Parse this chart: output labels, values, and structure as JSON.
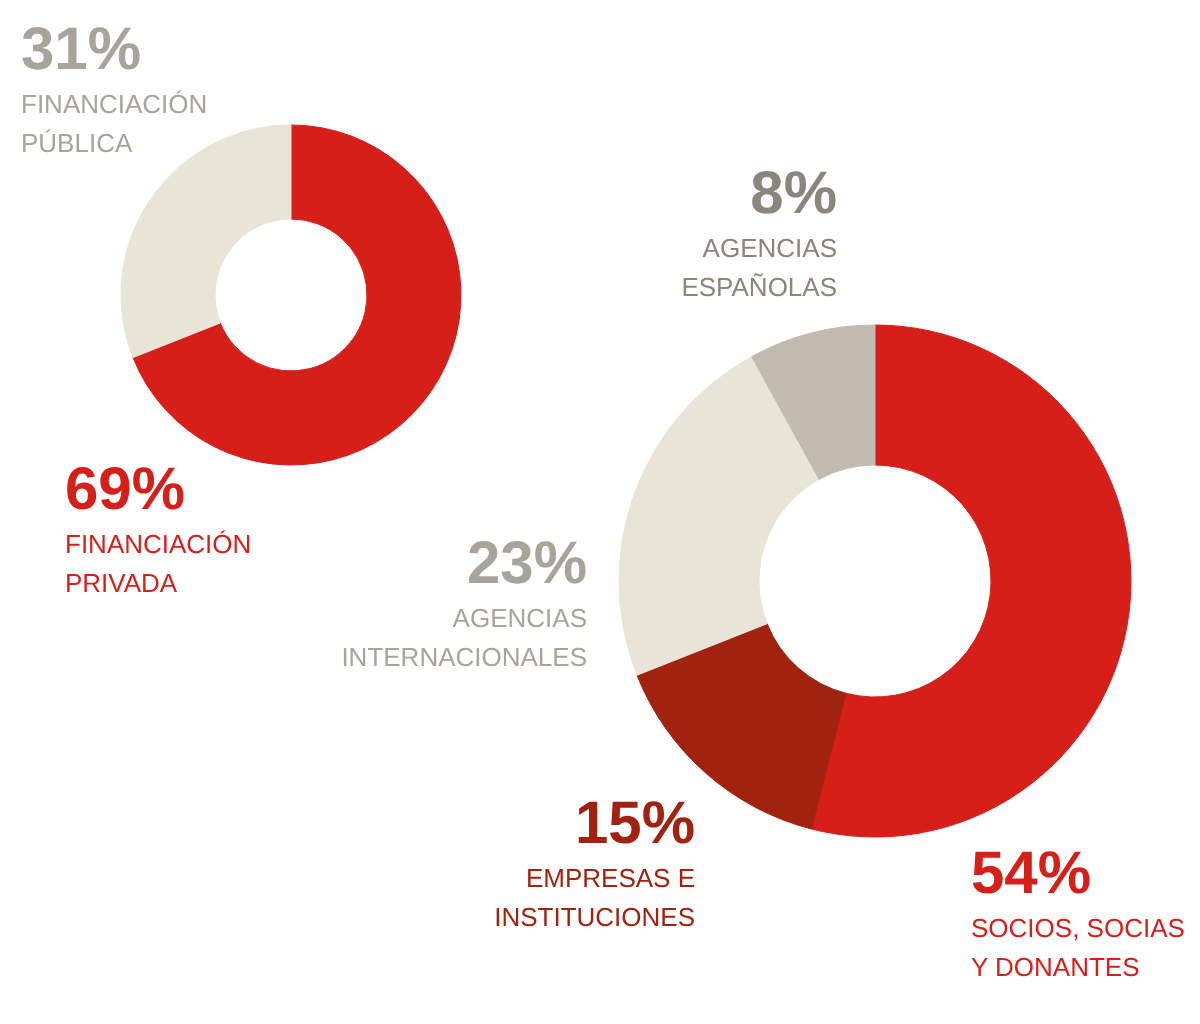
{
  "chart_data": [
    {
      "type": "donut",
      "categories": [
        "FINANCIACIÓN\nPRIVADA",
        "FINANCIACIÓN\nPÚBLICA"
      ],
      "values": [
        69,
        31
      ],
      "value_labels": [
        "69%",
        "31%"
      ],
      "colors": [
        "#d71f1a",
        "#e9e4d8"
      ]
    },
    {
      "type": "donut",
      "categories": [
        "SOCIOS, SOCIAS\nY DONANTES",
        "EMPRESAS E\nINSTITUCIONES",
        "AGENCIAS\nINTERNACIONALES",
        "AGENCIAS\nESPAÑOLAS"
      ],
      "values": [
        54,
        15,
        23,
        8
      ],
      "value_labels": [
        "54%",
        "15%",
        "23%",
        "8%"
      ],
      "colors": [
        "#d71f1a",
        "#a1220f",
        "#e9e4d8",
        "#c1bbaf"
      ]
    }
  ]
}
